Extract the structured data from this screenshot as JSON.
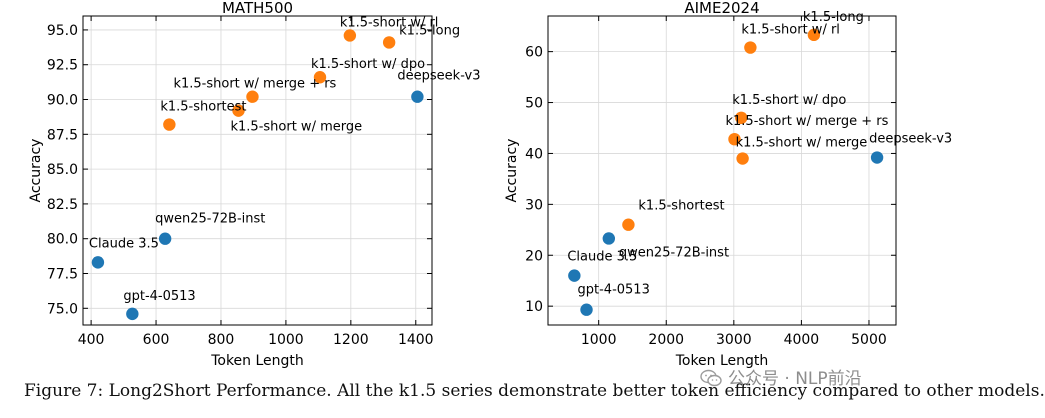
{
  "chart_data": [
    {
      "type": "scatter",
      "title": "MATH500",
      "xlabel": "Token Length",
      "ylabel": "Accuracy",
      "xlim": [
        375,
        1450
      ],
      "ylim": [
        73.8,
        96.0
      ],
      "xticks": [
        400,
        600,
        800,
        1000,
        1200,
        1400
      ],
      "yticks": [
        75.0,
        77.5,
        80.0,
        82.5,
        85.0,
        87.5,
        90.0,
        92.5,
        95.0
      ],
      "ytick_labels": [
        "75.0",
        "77.5",
        "80.0",
        "82.5",
        "85.0",
        "87.5",
        "90.0",
        "92.5",
        "95.0"
      ],
      "grid": true,
      "points": [
        {
          "label": "k1.5-short w/ rl",
          "x": 1197,
          "y": 94.6,
          "series": "k1.5"
        },
        {
          "label": "k1.5-long",
          "x": 1318,
          "y": 94.1,
          "series": "k1.5"
        },
        {
          "label": "k1.5-short w/ dpo",
          "x": 1105,
          "y": 91.6,
          "series": "k1.5"
        },
        {
          "label": "k1.5-short w/ merge + rs",
          "x": 897,
          "y": 90.2,
          "series": "k1.5"
        },
        {
          "label": "k1.5-short w/ merge",
          "x": 854,
          "y": 89.2,
          "series": "k1.5"
        },
        {
          "label": "k1.5-shortest",
          "x": 641,
          "y": 88.2,
          "series": "k1.5"
        },
        {
          "label": "deepseek-v3",
          "x": 1405,
          "y": 90.2,
          "series": "other"
        },
        {
          "label": "qwen25-72B-inst",
          "x": 628,
          "y": 80.0,
          "series": "other"
        },
        {
          "label": "Claude 3.5",
          "x": 421,
          "y": 78.3,
          "series": "other"
        },
        {
          "label": "gpt-4-0513",
          "x": 527,
          "y": 74.6,
          "series": "other"
        }
      ]
    },
    {
      "type": "scatter",
      "title": "AIME2024",
      "xlabel": "Token Length",
      "ylabel": "Accuracy",
      "xlim": [
        250,
        5400
      ],
      "ylim": [
        6.3,
        67.0
      ],
      "xticks": [
        1000,
        2000,
        3000,
        4000,
        5000
      ],
      "yticks": [
        10,
        20,
        30,
        40,
        50,
        60
      ],
      "ytick_labels": [
        "10",
        "20",
        "30",
        "40",
        "50",
        "60"
      ],
      "grid": true,
      "points": [
        {
          "label": "k1.5-long",
          "x": 4185,
          "y": 63.3,
          "series": "k1.5"
        },
        {
          "label": "k1.5-short w/ rl",
          "x": 3245,
          "y": 60.8,
          "series": "k1.5"
        },
        {
          "label": "k1.5-short w/ dpo",
          "x": 3110,
          "y": 47.0,
          "series": "k1.5"
        },
        {
          "label": "k1.5-short w/ merge + rs",
          "x": 3010,
          "y": 42.8,
          "series": "k1.5"
        },
        {
          "label": "k1.5-short w/ merge",
          "x": 3130,
          "y": 39.0,
          "series": "k1.5"
        },
        {
          "label": "k1.5-shortest",
          "x": 1440,
          "y": 26.0,
          "series": "k1.5"
        },
        {
          "label": "deepseek-v3",
          "x": 5120,
          "y": 39.2,
          "series": "other"
        },
        {
          "label": "qwen25-72B-inst",
          "x": 1150,
          "y": 23.3,
          "series": "other"
        },
        {
          "label": "Claude 3.5",
          "x": 640,
          "y": 16.0,
          "series": "other"
        },
        {
          "label": "gpt-4-0513",
          "x": 820,
          "y": 9.3,
          "series": "other"
        }
      ]
    }
  ],
  "colors": {
    "k1.5": "#ff7f0e",
    "other": "#1f77b4",
    "grid": "#d8d8d8",
    "axis": "#000000"
  },
  "caption": "Figure 7: Long2Short Performance. All the k1.5 series demonstrate better token efficiency compared to other models.",
  "watermark": "公众号 · NLP前沿"
}
